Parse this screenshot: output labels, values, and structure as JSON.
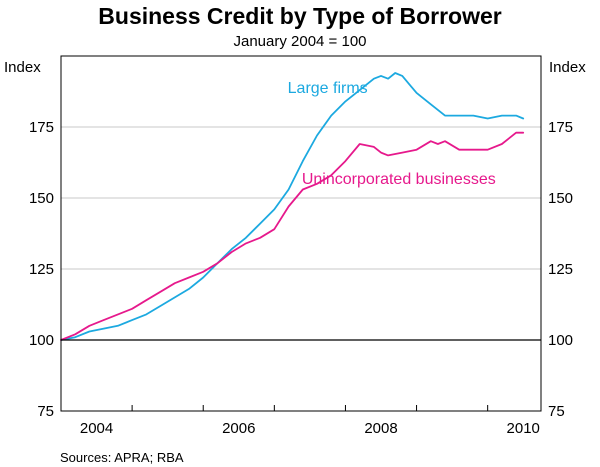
{
  "chart_data": {
    "type": "line",
    "title": "Business Credit by Type of Borrower",
    "subtitle": "January 2004 = 100",
    "ylabel_left": "Index",
    "ylabel_right": "Index",
    "source": "Sources: APRA; RBA",
    "x_range": [
      2004.0,
      2010.75
    ],
    "ylim": [
      75,
      200
    ],
    "y_ticks": [
      75,
      100,
      125,
      150,
      175
    ],
    "x_ticks": [
      {
        "label": "2004",
        "value": 2004.5
      },
      {
        "label": "2006",
        "value": 2006.5
      },
      {
        "label": "2008",
        "value": 2008.5
      },
      {
        "label": "2010",
        "value": 2010.5
      }
    ],
    "x_tick_marks": [
      2005,
      2006,
      2007,
      2008,
      2009,
      2010
    ],
    "series": [
      {
        "name": "Large firms",
        "color": "#1ca9e0",
        "x": [
          2004.0,
          2004.2,
          2004.4,
          2004.6,
          2004.8,
          2005.0,
          2005.2,
          2005.4,
          2005.6,
          2005.8,
          2006.0,
          2006.2,
          2006.4,
          2006.6,
          2006.8,
          2007.0,
          2007.2,
          2007.4,
          2007.6,
          2007.8,
          2008.0,
          2008.2,
          2008.4,
          2008.5,
          2008.6,
          2008.7,
          2008.8,
          2008.9,
          2009.0,
          2009.2,
          2009.4,
          2009.6,
          2009.8,
          2010.0,
          2010.2,
          2010.4,
          2010.5
        ],
        "values": [
          100,
          101,
          103,
          104,
          105,
          107,
          109,
          112,
          115,
          118,
          122,
          127,
          132,
          136,
          141,
          146,
          153,
          163,
          172,
          179,
          184,
          188,
          192,
          193,
          192,
          194,
          193,
          190,
          187,
          183,
          179,
          179,
          179,
          178,
          179,
          179,
          178
        ]
      },
      {
        "name": "Unincorporated businesses",
        "color": "#e6198c",
        "x": [
          2004.0,
          2004.2,
          2004.4,
          2004.6,
          2004.8,
          2005.0,
          2005.2,
          2005.4,
          2005.6,
          2005.8,
          2006.0,
          2006.2,
          2006.4,
          2006.6,
          2006.8,
          2007.0,
          2007.2,
          2007.4,
          2007.6,
          2007.8,
          2008.0,
          2008.2,
          2008.4,
          2008.5,
          2008.6,
          2008.8,
          2009.0,
          2009.2,
          2009.3,
          2009.4,
          2009.6,
          2009.8,
          2010.0,
          2010.2,
          2010.4,
          2010.5
        ],
        "values": [
          100,
          102,
          105,
          107,
          109,
          111,
          114,
          117,
          120,
          122,
          124,
          127,
          131,
          134,
          136,
          139,
          147,
          153,
          155,
          158,
          163,
          169,
          168,
          166,
          165,
          166,
          167,
          170,
          169,
          170,
          167,
          167,
          167,
          169,
          173,
          173
        ]
      }
    ]
  }
}
